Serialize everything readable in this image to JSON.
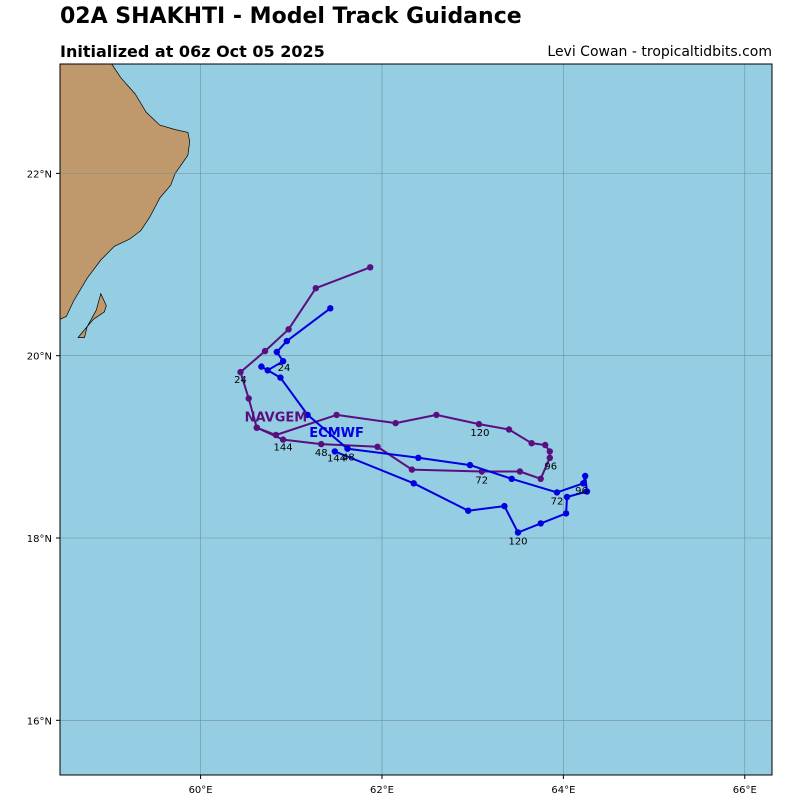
{
  "header": {
    "title": "02A SHAKHTI - Model Track Guidance",
    "subtitle": "Initialized at 06z Oct 05 2025",
    "credit": "Levi Cowan - tropicaltidbits.com"
  },
  "colors": {
    "ocean": "#95cde3",
    "land": "#bf986b",
    "grid": "#6f8fa0",
    "navgem": "#5a0f80",
    "ecmwf": "#0000e0"
  },
  "chart_data": {
    "type": "map-track",
    "xlim": [
      58.45,
      66.3
    ],
    "ylim": [
      15.4,
      23.2
    ],
    "x_ticks": [
      {
        "value": 60,
        "label": "60°E"
      },
      {
        "value": 62,
        "label": "62°E"
      },
      {
        "value": 64,
        "label": "64°E"
      },
      {
        "value": 66,
        "label": "66°E"
      }
    ],
    "y_ticks": [
      {
        "value": 16,
        "label": "16°N"
      },
      {
        "value": 18,
        "label": "18°N"
      },
      {
        "value": 20,
        "label": "20°N"
      },
      {
        "value": 22,
        "label": "22°N"
      }
    ],
    "grid": true,
    "land": [
      [
        [
          58.45,
          23.2
        ],
        [
          59.02,
          23.2
        ],
        [
          59.12,
          23.05
        ],
        [
          59.28,
          22.87
        ],
        [
          59.4,
          22.67
        ],
        [
          59.55,
          22.53
        ],
        [
          59.72,
          22.48
        ],
        [
          59.86,
          22.45
        ],
        [
          59.88,
          22.35
        ],
        [
          59.86,
          22.2
        ],
        [
          59.72,
          22.0
        ],
        [
          59.67,
          21.87
        ],
        [
          59.55,
          21.73
        ],
        [
          59.44,
          21.52
        ],
        [
          59.34,
          21.37
        ],
        [
          59.22,
          21.28
        ],
        [
          59.05,
          21.2
        ],
        [
          58.9,
          21.05
        ],
        [
          58.75,
          20.85
        ],
        [
          58.6,
          20.6
        ],
        [
          58.52,
          20.43
        ],
        [
          58.45,
          20.4
        ]
      ],
      [
        [
          58.65,
          20.2
        ],
        [
          58.75,
          20.32
        ],
        [
          58.85,
          20.5
        ],
        [
          58.9,
          20.68
        ],
        [
          58.96,
          20.55
        ],
        [
          58.94,
          20.48
        ],
        [
          58.82,
          20.4
        ],
        [
          58.75,
          20.32
        ],
        [
          58.72,
          20.2
        ],
        [
          58.65,
          20.2
        ]
      ]
    ],
    "series": [
      {
        "name": "NAVGEM",
        "color": "#5a0f80",
        "points": [
          [
            61.87,
            20.97
          ],
          [
            61.27,
            20.74
          ],
          [
            60.97,
            20.29
          ],
          [
            60.71,
            20.05
          ],
          [
            60.44,
            19.82
          ],
          [
            60.53,
            19.53
          ],
          [
            60.62,
            19.21
          ],
          [
            60.83,
            19.13
          ],
          [
            61.5,
            19.35
          ],
          [
            62.15,
            19.26
          ],
          [
            62.6,
            19.35
          ],
          [
            63.07,
            19.25
          ],
          [
            63.4,
            19.19
          ],
          [
            63.65,
            19.04
          ],
          [
            63.8,
            19.02
          ],
          [
            63.85,
            18.95
          ],
          [
            63.85,
            18.88
          ],
          [
            63.75,
            18.65
          ],
          [
            63.52,
            18.73
          ],
          [
            63.1,
            18.73
          ],
          [
            62.33,
            18.75
          ],
          [
            61.95,
            19.0
          ],
          [
            61.33,
            19.03
          ],
          [
            60.91,
            19.08
          ],
          [
            60.62,
            19.21
          ]
        ],
        "labels": [
          {
            "text": "24",
            "x": 60.44,
            "y": 19.7
          },
          {
            "text": "120",
            "x": 63.08,
            "y": 19.12
          },
          {
            "text": "96",
            "x": 63.86,
            "y": 18.75
          },
          {
            "text": "72",
            "x": 63.1,
            "y": 18.6
          },
          {
            "text": "48",
            "x": 61.33,
            "y": 18.9
          },
          {
            "text": "144",
            "x": 60.91,
            "y": 18.96
          }
        ],
        "model_label": {
          "text": "NAVGEM",
          "x": 60.83,
          "y": 19.28
        }
      },
      {
        "name": "ECMWF",
        "color": "#0000e0",
        "points": [
          [
            61.43,
            20.52
          ],
          [
            60.95,
            20.16
          ],
          [
            60.84,
            20.04
          ],
          [
            60.91,
            19.94
          ],
          [
            60.74,
            19.84
          ],
          [
            60.67,
            19.88
          ],
          [
            60.88,
            19.76
          ],
          [
            61.18,
            19.35
          ],
          [
            61.62,
            18.98
          ],
          [
            62.4,
            18.88
          ],
          [
            62.97,
            18.8
          ],
          [
            63.43,
            18.65
          ],
          [
            63.93,
            18.5
          ],
          [
            64.22,
            18.6
          ],
          [
            64.24,
            18.68
          ],
          [
            64.26,
            18.51
          ],
          [
            64.04,
            18.45
          ],
          [
            64.03,
            18.27
          ],
          [
            63.75,
            18.16
          ],
          [
            63.5,
            18.06
          ],
          [
            63.35,
            18.35
          ],
          [
            62.95,
            18.3
          ],
          [
            62.35,
            18.6
          ],
          [
            61.48,
            18.95
          ]
        ],
        "labels": [
          {
            "text": "24",
            "x": 60.92,
            "y": 19.83
          },
          {
            "text": "48",
            "x": 61.63,
            "y": 18.85
          },
          {
            "text": "72",
            "x": 63.93,
            "y": 18.37
          },
          {
            "text": "96",
            "x": 64.2,
            "y": 18.48
          },
          {
            "text": "120",
            "x": 63.5,
            "y": 17.93
          },
          {
            "text": "144",
            "x": 61.5,
            "y": 18.84
          }
        ],
        "model_label": {
          "text": "ECMWF",
          "x": 61.5,
          "y": 19.11
        }
      }
    ]
  }
}
